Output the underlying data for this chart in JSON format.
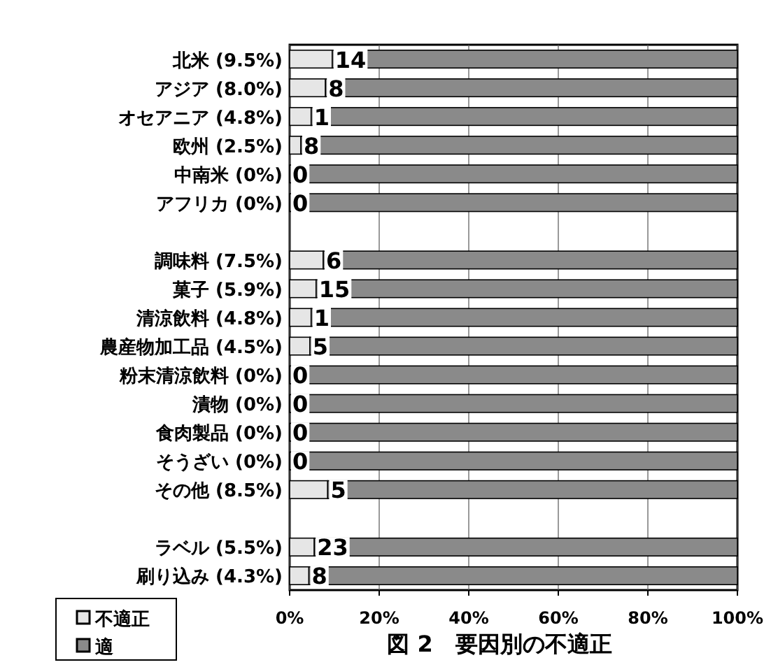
{
  "chart_data": {
    "type": "bar",
    "orientation": "horizontal",
    "stacked": true,
    "title": "図 2　要因別の不適正",
    "categories": [
      "北米 (9.5%)",
      "アジア (8.0%)",
      "オセアニア (4.8%)",
      "欧州 (2.5%)",
      "中南米 (0%)",
      "アフリカ (0%)",
      null,
      "調味料 (7.5%)",
      "菓子 (5.9%)",
      "清涼飲料 (4.8%)",
      "農産物加工品 (4.5%)",
      "粉末清涼飲料 (0%)",
      "漬物 (0%)",
      "食肉製品 (0%)",
      "そうざい (0%)",
      "その他 (8.5%)",
      null,
      "ラベル (5.5%)",
      "刷り込み (4.3%)"
    ],
    "series": [
      {
        "name": "不適正",
        "color": "#e6e6e6",
        "values": [
          9.5,
          8.0,
          4.8,
          2.5,
          0,
          0,
          null,
          7.5,
          5.9,
          4.8,
          4.5,
          0,
          0,
          0,
          0,
          8.5,
          null,
          5.5,
          4.3
        ]
      },
      {
        "name": "適",
        "color": "#8a8a8a",
        "values": [
          90.5,
          92.0,
          95.2,
          97.5,
          100,
          100,
          null,
          92.5,
          94.1,
          95.2,
          95.5,
          100,
          100,
          100,
          100,
          91.5,
          null,
          94.5,
          95.7
        ]
      }
    ],
    "xlim": [
      0,
      100
    ],
    "xticks": [
      {
        "value": 0,
        "label": "0%"
      },
      {
        "value": 20,
        "label": "20%"
      },
      {
        "value": 40,
        "label": "40%"
      },
      {
        "value": 60,
        "label": "60%"
      },
      {
        "value": 80,
        "label": "80%"
      },
      {
        "value": 100,
        "label": "100%"
      }
    ],
    "annotations": [
      {
        "text": "14",
        "x": 9.5,
        "y": "北米 (9.5%)"
      },
      {
        "text": "8",
        "x": 8.0,
        "y": "アジア (8.0%)"
      },
      {
        "text": "1",
        "x": 4.8,
        "y": "オセアニア (4.8%)"
      },
      {
        "text": "8",
        "x": 2.5,
        "y": "欧州 (2.5%)"
      },
      {
        "text": "0",
        "x": 0,
        "y": "中南米 (0%)"
      },
      {
        "text": "0",
        "x": 0,
        "y": "アフリカ (0%)"
      },
      {
        "text": "6",
        "x": 7.5,
        "y": "調味料 (7.5%)"
      },
      {
        "text": "15",
        "x": 5.9,
        "y": "菓子 (5.9%)"
      },
      {
        "text": "1",
        "x": 4.8,
        "y": "清涼飲料 (4.8%)"
      },
      {
        "text": "5",
        "x": 4.5,
        "y": "農産物加工品 (4.5%)"
      },
      {
        "text": "0",
        "x": 0,
        "y": "粉末清涼飲料 (0%)"
      },
      {
        "text": "0",
        "x": 0,
        "y": "漬物 (0%)"
      },
      {
        "text": "0",
        "x": 0,
        "y": "食肉製品 (0%)"
      },
      {
        "text": "0",
        "x": 0,
        "y": "そうざい (0%)"
      },
      {
        "text": "5",
        "x": 8.5,
        "y": "その他 (8.5%)"
      },
      {
        "text": "23",
        "x": 5.5,
        "y": "ラベル (5.5%)"
      },
      {
        "text": "8",
        "x": 4.3,
        "y": "刷り込み (4.3%)"
      }
    ],
    "grid": "x",
    "legend": "bottom left"
  }
}
